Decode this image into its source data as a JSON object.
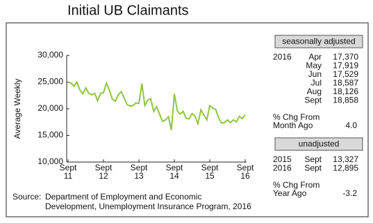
{
  "chart_data": {
    "type": "line",
    "title": "Initial UB Claimants",
    "ylabel": "Average Weekly",
    "categories": [
      [
        "Sept",
        "11"
      ],
      null,
      null,
      null,
      null,
      null,
      null,
      null,
      null,
      null,
      null,
      null,
      [
        "Sept",
        "12"
      ],
      null,
      null,
      null,
      null,
      null,
      null,
      null,
      null,
      null,
      null,
      null,
      [
        "Sept",
        "13"
      ],
      null,
      null,
      null,
      null,
      null,
      null,
      null,
      null,
      null,
      null,
      null,
      [
        "Sept",
        "14"
      ],
      null,
      null,
      null,
      null,
      null,
      null,
      null,
      null,
      null,
      null,
      null,
      [
        "Sept",
        "15"
      ],
      null,
      null,
      null,
      null,
      null,
      null,
      null,
      null,
      null,
      null,
      null,
      [
        "Sept",
        "16"
      ]
    ],
    "series": [
      {
        "name": "Initial UB Claimants",
        "color": "#8dc63f",
        "values": [
          25000,
          24800,
          24200,
          25000,
          23500,
          22800,
          23900,
          22900,
          22600,
          22900,
          21500,
          22900,
          23000,
          24800,
          23500,
          21800,
          21400,
          22600,
          23200,
          22000,
          20800,
          20500,
          20600,
          21100,
          21000,
          24700,
          20600,
          21600,
          21900,
          19500,
          20400,
          19000,
          17600,
          17900,
          18500,
          16000,
          22800,
          19600,
          19000,
          19500,
          18200,
          18100,
          19100,
          18600,
          17200,
          19800,
          18800,
          17900,
          20600,
          20100,
          19900,
          18300,
          17300,
          17400,
          17900,
          17370,
          17919,
          17529,
          18587,
          18126,
          18858
        ]
      }
    ],
    "ylim": [
      10000,
      30000
    ],
    "yticks": [
      {
        "value": 10000,
        "label": "10,000"
      },
      {
        "value": 15000,
        "label": "15,000"
      },
      {
        "value": 20000,
        "label": "20,000"
      },
      {
        "value": 25000,
        "label": "25,000"
      },
      {
        "value": 30000,
        "label": "30,000"
      }
    ],
    "grid": false
  },
  "panel": {
    "seasonal": {
      "heading": "seasonally adjusted",
      "rows": [
        {
          "year": "2016",
          "month": "Apr",
          "value": "17,370"
        },
        {
          "month": "May",
          "value": "17,919"
        },
        {
          "month": "Jun",
          "value": "17,529"
        },
        {
          "month": "Jul",
          "value": "18,587"
        },
        {
          "month": "Aug",
          "value": "18,126"
        },
        {
          "month": "Sept",
          "value": "18,858"
        }
      ],
      "change": {
        "label": [
          "% Chg From",
          "Month Ago"
        ],
        "value": "4.0"
      }
    },
    "unadjusted": {
      "heading": "unadjusted",
      "rows": [
        {
          "year": "2015",
          "month": "Sept",
          "value": "13,327"
        },
        {
          "year": "2016",
          "month": "Sept",
          "value": "12,895"
        }
      ],
      "change": {
        "label": [
          "% Chg From",
          "Year Ago"
        ],
        "value": "-3.2"
      }
    }
  },
  "source": {
    "label": "Source:",
    "lines": [
      "Department of Employment and Economic",
      "Development, Unemployment Insurance Program, 2016"
    ]
  }
}
